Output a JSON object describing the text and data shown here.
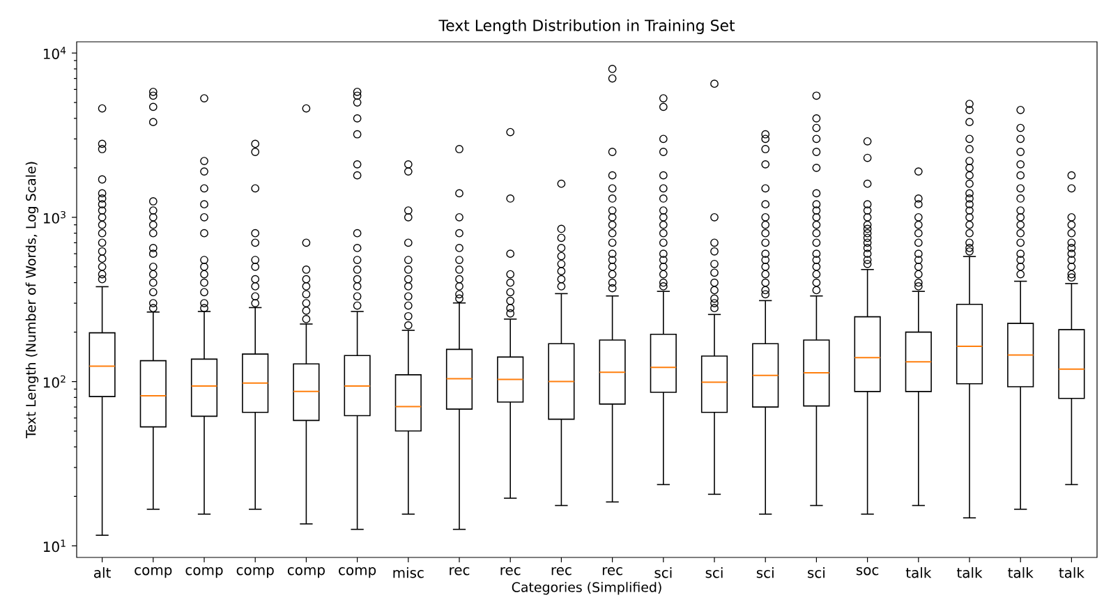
{
  "chart_data": {
    "type": "box",
    "title": "Text Length Distribution in Training Set",
    "xlabel": "Categories (Simplified)",
    "ylabel": "Text Length (Number of Words, Log Scale)",
    "categories": [
      "alt",
      "comp",
      "comp",
      "comp",
      "comp",
      "comp",
      "misc",
      "rec",
      "rec",
      "rec",
      "rec",
      "sci",
      "sci",
      "sci",
      "sci",
      "soc",
      "talk",
      "talk",
      "talk",
      "talk"
    ],
    "log": "y",
    "ylim": [
      8.5,
      11700
    ],
    "yticks": [
      {
        "value": 10,
        "label": "10$^{1}$"
      },
      {
        "value": 100,
        "label": "10$^{2}$"
      },
      {
        "value": 1000,
        "label": "10$^{3}$"
      },
      {
        "value": 10000,
        "label": "10$^{4}$"
      }
    ],
    "series": [
      {
        "color": "#000000",
        "boxes": [
          {
            "low": 11.6,
            "q1": 81,
            "median": 124,
            "q3": 198,
            "high": 378,
            "outliers": [
              4600,
              2800,
              2600,
              1700,
              1400,
              1300,
              1200,
              1100,
              1000,
              900,
              800,
              700,
              620,
              560,
              500,
              450,
              420
            ]
          },
          {
            "low": 16.7,
            "q1": 53,
            "median": 82,
            "q3": 134,
            "high": 265,
            "outliers": [
              5800,
              5500,
              4700,
              3800,
              1250,
              1100,
              1000,
              900,
              800,
              650,
              600,
              500,
              450,
              400,
              350,
              300,
              280
            ]
          },
          {
            "low": 15.6,
            "q1": 61.5,
            "median": 94,
            "q3": 137,
            "high": 267,
            "outliers": [
              5300,
              2200,
              1900,
              1500,
              1200,
              1000,
              800,
              550,
              500,
              450,
              400,
              350,
              300,
              280
            ]
          },
          {
            "low": 16.7,
            "q1": 65,
            "median": 98,
            "q3": 147,
            "high": 282,
            "outliers": [
              2800,
              2500,
              1500,
              800,
              700,
              550,
              500,
              420,
              380,
              330,
              300
            ]
          },
          {
            "low": 13.6,
            "q1": 58,
            "median": 87,
            "q3": 128,
            "high": 224,
            "outliers": [
              4600,
              700,
              480,
              420,
              380,
              340,
              300,
              270,
              240
            ]
          },
          {
            "low": 12.6,
            "q1": 62,
            "median": 94,
            "q3": 144,
            "high": 267,
            "outliers": [
              5800,
              5500,
              5000,
              4000,
              3200,
              2100,
              1800,
              800,
              650,
              550,
              480,
              420,
              380,
              330,
              290
            ]
          },
          {
            "low": 15.6,
            "q1": 50,
            "median": 70.5,
            "q3": 110,
            "high": 205,
            "outliers": [
              2100,
              1900,
              1100,
              1000,
              700,
              550,
              480,
              420,
              380,
              330,
              290,
              250,
              220
            ]
          },
          {
            "low": 12.6,
            "q1": 68,
            "median": 104,
            "q3": 157,
            "high": 301,
            "outliers": [
              2600,
              1400,
              1000,
              800,
              650,
              550,
              480,
              420,
              380,
              340,
              320
            ]
          },
          {
            "low": 19.5,
            "q1": 75,
            "median": 103,
            "q3": 141,
            "high": 240,
            "outliers": [
              3300,
              1300,
              600,
              450,
              400,
              350,
              310,
              280,
              260
            ]
          },
          {
            "low": 17.6,
            "q1": 59,
            "median": 100,
            "q3": 170,
            "high": 343,
            "outliers": [
              1600,
              850,
              750,
              650,
              580,
              520,
              470,
              420,
              380
            ]
          },
          {
            "low": 18.5,
            "q1": 73,
            "median": 114,
            "q3": 179,
            "high": 332,
            "outliers": [
              8000,
              7000,
              2500,
              1800,
              1500,
              1300,
              1100,
              1000,
              900,
              800,
              700,
              600,
              550,
              500,
              450,
              400,
              370
            ]
          },
          {
            "low": 23.6,
            "q1": 86,
            "median": 122,
            "q3": 194,
            "high": 354,
            "outliers": [
              5300,
              4700,
              3000,
              2500,
              1800,
              1500,
              1300,
              1100,
              1000,
              900,
              800,
              700,
              600,
              550,
              500,
              450,
              400,
              380
            ]
          },
          {
            "low": 20.6,
            "q1": 65,
            "median": 99,
            "q3": 143,
            "high": 256,
            "outliers": [
              6500,
              1000,
              700,
              620,
              520,
              460,
              400,
              360,
              320,
              300,
              280
            ]
          },
          {
            "low": 15.6,
            "q1": 70,
            "median": 109,
            "q3": 170,
            "high": 311,
            "outliers": [
              3200,
              3000,
              2600,
              2100,
              1500,
              1200,
              1000,
              900,
              800,
              700,
              600,
              550,
              500,
              450,
              400,
              360,
              340
            ]
          },
          {
            "low": 17.6,
            "q1": 71,
            "median": 113,
            "q3": 179,
            "high": 332,
            "outliers": [
              5500,
              4000,
              3500,
              3000,
              2500,
              2000,
              1400,
              1200,
              1100,
              1000,
              900,
              800,
              700,
              600,
              550,
              500,
              450,
              400,
              360
            ]
          },
          {
            "low": 15.6,
            "q1": 87,
            "median": 140,
            "q3": 248,
            "high": 481,
            "outliers": [
              2900,
              2300,
              1600,
              1200,
              1100,
              1000,
              900,
              850,
              800,
              750,
              700,
              650,
              600,
              550,
              520
            ]
          },
          {
            "low": 17.6,
            "q1": 87,
            "median": 132,
            "q3": 200,
            "high": 354,
            "outliers": [
              1900,
              1300,
              1200,
              1000,
              900,
              800,
              700,
              600,
              550,
              500,
              450,
              400,
              380
            ]
          },
          {
            "low": 14.8,
            "q1": 97,
            "median": 164,
            "q3": 295,
            "high": 577,
            "outliers": [
              4900,
              4500,
              3800,
              3000,
              2600,
              2200,
              2000,
              1800,
              1600,
              1400,
              1300,
              1200,
              1100,
              1000,
              900,
              800,
              700,
              650,
              620
            ]
          },
          {
            "low": 16.7,
            "q1": 93,
            "median": 145,
            "q3": 226,
            "high": 408,
            "outliers": [
              4500,
              3500,
              3000,
              2500,
              2100,
              1800,
              1500,
              1300,
              1100,
              1000,
              900,
              800,
              700,
              600,
              550,
              500,
              450
            ]
          },
          {
            "low": 23.6,
            "q1": 79,
            "median": 119,
            "q3": 207,
            "high": 395,
            "outliers": [
              1800,
              1500,
              1000,
              900,
              800,
              700,
              650,
              600,
              550,
              500,
              450,
              430
            ]
          }
        ]
      }
    ]
  }
}
